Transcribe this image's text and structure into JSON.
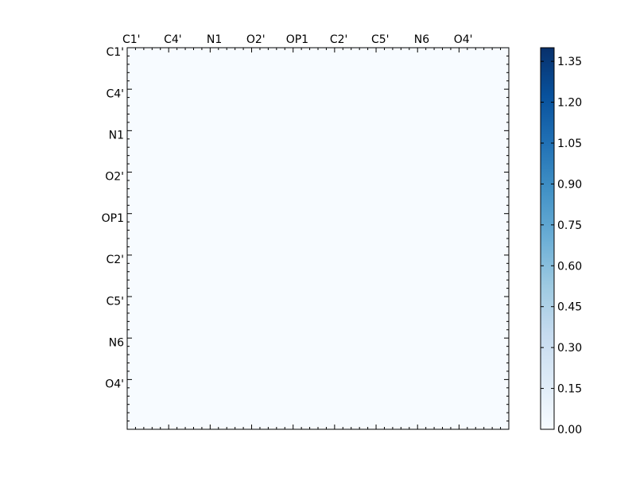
{
  "chart_data": {
    "type": "heatmap",
    "title": "",
    "xlabel": "",
    "ylabel": "",
    "colormap": "Blues",
    "colorscale": [
      "#f7fbff",
      "#deebf7",
      "#c6dbef",
      "#9ecae1",
      "#6baed6",
      "#4292c6",
      "#2171b5",
      "#08519c",
      "#08306b"
    ],
    "vmin": 0.0,
    "vmax": 1.4,
    "n": 46,
    "x_tick_labels": [
      "C1'",
      "C4'",
      "N1",
      "O2'",
      "OP1",
      "C2'",
      "C5'",
      "N6",
      "O4'"
    ],
    "y_tick_labels": [
      "C1'",
      "C4'",
      "N1",
      "O2'",
      "OP1",
      "C2'",
      "C5'",
      "N6",
      "O4'"
    ],
    "colorbar_ticks": [
      "0.00",
      "0.15",
      "0.30",
      "0.45",
      "0.60",
      "0.75",
      "0.90",
      "1.05",
      "1.20",
      "1.35"
    ],
    "colorbar_tick_values": [
      0.0,
      0.15,
      0.3,
      0.45,
      0.6,
      0.75,
      0.9,
      1.05,
      1.2,
      1.35
    ],
    "rows": [
      "",
      "",
      "",
      "",
      "",
      "",
      "",
      "",
      "",
      "",
      "",
      "",
      "",
      "",
      "",
      "",
      "",
      "",
      "",
      "",
      "",
      "",
      "",
      "",
      "",
      "",
      "",
      "",
      "",
      "",
      "",
      "",
      "",
      "",
      "",
      "",
      "",
      "",
      "",
      "",
      "",
      "",
      "",
      "",
      "",
      ""
    ]
  }
}
